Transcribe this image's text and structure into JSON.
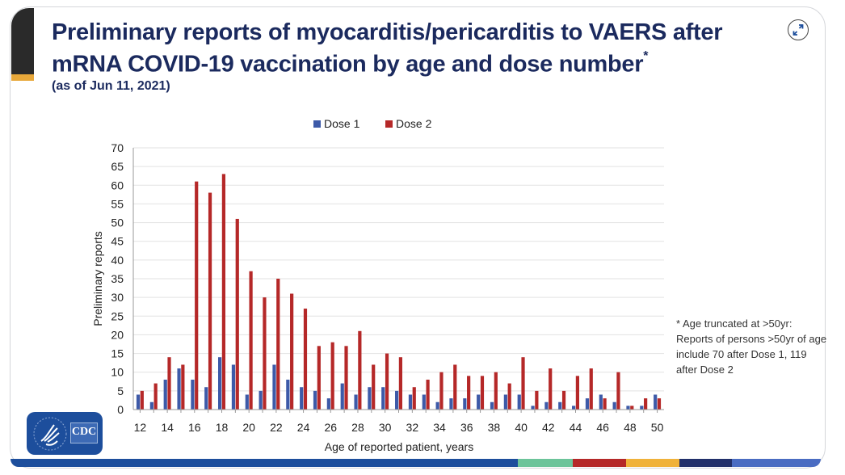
{
  "slide": {
    "title_line1": "Preliminary reports of myocarditis/pericarditis to VAERS after",
    "title_line2": "mRNA COVID-19 vaccination by age and dose number",
    "title_asterisk": "*",
    "subtitle": "(as of Jun 11, 2021)",
    "footnote": "* Age truncated at >50yr: Reports of persons >50yr of age include 70 after Dose 1, 119 after Dose 2",
    "logo_text": "CDC",
    "expand_icon": "expand-icon"
  },
  "colors": {
    "title": "#1b2a5e",
    "dose1": "#3d5aa8",
    "dose2": "#b52828",
    "accent_dark": "#2a2a2a",
    "accent_gold": "#e8a83a",
    "stripe": [
      "#1d4e9c",
      "#6cc49a",
      "#b52828",
      "#f0b23a",
      "#22306a",
      "#4a6cc2"
    ]
  },
  "chart_data": {
    "type": "bar",
    "title": "",
    "xlabel": "Age of reported patient, years",
    "ylabel": "Preliminary reports",
    "ylim": [
      0,
      70
    ],
    "yticks": [
      0,
      5,
      10,
      15,
      20,
      25,
      30,
      35,
      40,
      45,
      50,
      55,
      60,
      65,
      70
    ],
    "grid": true,
    "legend_position": "top-center",
    "categories": [
      12,
      13,
      14,
      15,
      16,
      17,
      18,
      19,
      20,
      21,
      22,
      23,
      24,
      25,
      26,
      27,
      28,
      29,
      30,
      31,
      32,
      33,
      34,
      35,
      36,
      37,
      38,
      39,
      40,
      41,
      42,
      43,
      44,
      45,
      46,
      47,
      48,
      49,
      50
    ],
    "xtick_labels": [
      "12",
      "14",
      "16",
      "18",
      "20",
      "22",
      "24",
      "26",
      "28",
      "30",
      "32",
      "34",
      "36",
      "38",
      "40",
      "42",
      "44",
      "46",
      "48",
      "50"
    ],
    "series": [
      {
        "name": "Dose 1",
        "color": "#3d5aa8",
        "values": [
          4,
          2,
          8,
          11,
          8,
          6,
          14,
          12,
          4,
          5,
          12,
          8,
          6,
          5,
          3,
          7,
          4,
          6,
          6,
          5,
          4,
          4,
          2,
          3,
          3,
          4,
          2,
          4,
          4,
          1,
          2,
          2,
          1,
          3,
          4,
          2,
          1,
          1,
          4
        ]
      },
      {
        "name": "Dose 2",
        "color": "#b52828",
        "values": [
          5,
          7,
          14,
          12,
          61,
          58,
          63,
          51,
          37,
          30,
          35,
          31,
          27,
          17,
          18,
          17,
          21,
          12,
          15,
          14,
          6,
          8,
          10,
          12,
          9,
          9,
          10,
          7,
          14,
          5,
          11,
          5,
          9,
          11,
          3,
          10,
          1,
          3,
          3
        ]
      }
    ]
  }
}
